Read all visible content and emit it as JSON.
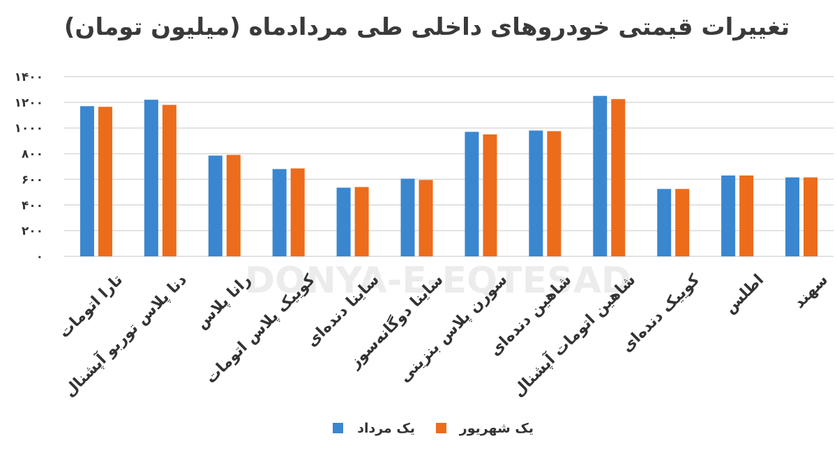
{
  "chart_data": {
    "type": "bar",
    "title": "تغییرات قیمتی خودروهای داخلی طی مردادماه (میلیون تومان)",
    "categories": [
      "تارا اتومات",
      "دنا پلاس توربو آپشنال",
      "رانا پلاس",
      "کوییک پلاس اتومات",
      "ساینا دنده‌ای",
      "ساینا دوگانه‌سوز",
      "سورن پلاس بنزینی",
      "شاهین دنده‌ای",
      "شاهین اتومات آپشنال",
      "کوییک دنده‌ای",
      "اطلس",
      "سهند"
    ],
    "series": [
      {
        "name": "یک مرداد",
        "color": "#3a87d0",
        "values": [
          1170,
          1220,
          785,
          680,
          535,
          605,
          970,
          980,
          1250,
          525,
          630,
          615
        ]
      },
      {
        "name": "یک شهریور",
        "color": "#ec6c1c",
        "values": [
          1165,
          1180,
          790,
          685,
          540,
          595,
          950,
          975,
          1225,
          525,
          630,
          615
        ]
      }
    ],
    "ylim": [
      0,
      1400
    ],
    "yticks": [
      {
        "value": 0,
        "label": "۰"
      },
      {
        "value": 200,
        "label": "۲۰۰"
      },
      {
        "value": 400,
        "label": "۴۰۰"
      },
      {
        "value": 600,
        "label": "۶۰۰"
      },
      {
        "value": 800,
        "label": "۸۰۰"
      },
      {
        "value": 1000,
        "label": "۱۰۰۰"
      },
      {
        "value": 1200,
        "label": "۱۲۰۰"
      },
      {
        "value": 1400,
        "label": "۱۴۰۰"
      }
    ],
    "grid": true,
    "legend_position": "bottom"
  },
  "watermark": {
    "text": "DONYA-E-EQTESAD"
  }
}
